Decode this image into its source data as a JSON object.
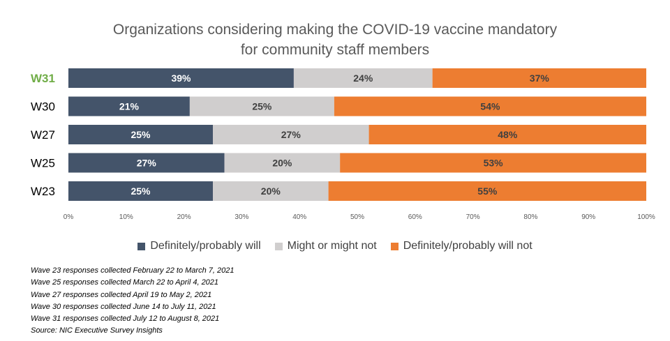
{
  "title_line1": "Organizations considering making the COVID-19 vaccine mandatory",
  "title_line2": "for community staff members",
  "colors": {
    "will": "#44546A",
    "might": "#D0CECE",
    "will_not": "#ED7D31",
    "highlight_label": "#70AD47",
    "label_dark_text": "#404040",
    "label_light_text": "#ffffff"
  },
  "chart_data": {
    "type": "bar",
    "orientation": "horizontal",
    "stacked": "100%",
    "categories": [
      "W31",
      "W30",
      "W27",
      "W25",
      "W23"
    ],
    "highlighted_category": "W31",
    "series": [
      {
        "name": "Definitely/probably will",
        "values": [
          39,
          21,
          25,
          27,
          25
        ]
      },
      {
        "name": "Might or might not",
        "values": [
          24,
          25,
          27,
          20,
          20
        ]
      },
      {
        "name": "Definitely/probably will not",
        "values": [
          37,
          54,
          48,
          53,
          55
        ]
      }
    ],
    "value_labels": [
      [
        "39%",
        "24%",
        "37%"
      ],
      [
        "21%",
        "25%",
        "54%"
      ],
      [
        "25%",
        "27%",
        "48%"
      ],
      [
        "27%",
        "20%",
        "53%"
      ],
      [
        "25%",
        "20%",
        "55%"
      ]
    ],
    "xlim": [
      0,
      100
    ],
    "xticks": [
      "0%",
      "10%",
      "20%",
      "30%",
      "40%",
      "50%",
      "60%",
      "70%",
      "80%",
      "90%",
      "100%"
    ],
    "legend_position": "bottom",
    "grid": false
  },
  "legend": [
    {
      "label": "Definitely/probably will",
      "color": "#44546A"
    },
    {
      "label": "Might or might not",
      "color": "#D0CECE"
    },
    {
      "label": "Definitely/probably will not",
      "color": "#ED7D31"
    }
  ],
  "notes": [
    "Wave 23 responses collected  February 22 to March 7, 2021",
    "Wave 25 responses collected March 22 to April 4, 2021",
    "Wave 27 responses collected April 19 to May 2, 2021",
    "Wave 30 responses collected June 14 to July 11, 2021",
    "Wave 31 responses collected July 12 to August 8, 2021",
    "Source: NIC Executive Survey Insights"
  ]
}
